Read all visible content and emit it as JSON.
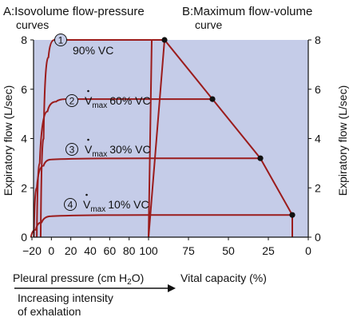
{
  "titles": {
    "a_title": "A:Isovolume flow-pressure",
    "a_title_line2": "curves",
    "b_title": "B:Maximum flow-volume",
    "b_title_line2": "curve"
  },
  "colors": {
    "plot_background": "#c5cce8",
    "curve": "#9b1c1c",
    "point": "#111111"
  },
  "y_axis": {
    "label_left": "Expiratory flow (L/sec)",
    "label_right": "Expiratory flow (L/sec)",
    "ticks": [
      "0",
      "2",
      "4",
      "6",
      "8"
    ],
    "range": [
      0,
      8
    ]
  },
  "x_axis_a": {
    "label_prefix": "Pleural pressure (cm H",
    "label_sub": "2",
    "label_suffix": "O)",
    "ticks": [
      "−20",
      "0",
      "20",
      "40",
      "60",
      "80",
      "100"
    ],
    "range": [
      -20,
      100
    ]
  },
  "x_axis_b": {
    "label": "Vital capacity (%)",
    "ticks": [
      "100",
      "75",
      "50",
      "25",
      "0"
    ],
    "range": [
      100,
      0
    ]
  },
  "annotation": {
    "line1": "Increasing intensity",
    "line2": "of exhalation"
  },
  "curve_labels": [
    {
      "num": "1",
      "vmax": "",
      "text": "90% VC"
    },
    {
      "num": "2",
      "vmax": "V",
      "sub": "max",
      "text": "60% VC"
    },
    {
      "num": "3",
      "vmax": "V",
      "sub": "max",
      "text": "30% VC"
    },
    {
      "num": "4",
      "vmax": "V",
      "sub": "max",
      "text": "10% VC"
    }
  ],
  "chart_data": [
    {
      "type": "line",
      "title": "Isovolume flow-pressure curves",
      "xlabel": "Pleural pressure (cm H2O)",
      "ylabel": "Expiratory flow (L/sec)",
      "xlim": [
        -20,
        100
      ],
      "ylim": [
        0,
        8
      ],
      "series": [
        {
          "name": "90% VC",
          "plateau_flow": 8.0,
          "points": [
            [
              -11,
              0
            ],
            [
              -8,
              4
            ],
            [
              -3,
              7.3
            ],
            [
              3,
              8
            ],
            [
              100,
              8
            ]
          ]
        },
        {
          "name": "60% VC",
          "plateau_flow": 5.6,
          "points": [
            [
              -15,
              0
            ],
            [
              -12,
              3
            ],
            [
              -4,
              5.1
            ],
            [
              5,
              5.5
            ],
            [
              15,
              5.6
            ],
            [
              100,
              5.6
            ]
          ]
        },
        {
          "name": "30% VC",
          "plateau_flow": 3.2,
          "points": [
            [
              -18,
              0
            ],
            [
              -15,
              2
            ],
            [
              -8,
              2.9
            ],
            [
              0,
              3.15
            ],
            [
              100,
              3.2
            ]
          ]
        },
        {
          "name": "10% VC",
          "plateau_flow": 0.9,
          "points": [
            [
              -21,
              0
            ],
            [
              -16,
              0.3
            ],
            [
              -10,
              0.6
            ],
            [
              0,
              0.85
            ],
            [
              100,
              0.9
            ]
          ]
        }
      ]
    },
    {
      "type": "line",
      "title": "Maximum flow-volume curve",
      "xlabel": "Vital capacity (%)",
      "ylabel": "Expiratory flow (L/sec)",
      "xlim": [
        100,
        0
      ],
      "ylim": [
        0,
        8
      ],
      "series": [
        {
          "name": "Maximum flow-volume curve",
          "x": [
            100,
            90,
            60,
            30,
            10,
            10
          ],
          "y": [
            0,
            8,
            5.6,
            3.2,
            0.9,
            0
          ]
        }
      ],
      "points": [
        {
          "vc": 90,
          "flow": 8.0
        },
        {
          "vc": 60,
          "flow": 5.6
        },
        {
          "vc": 30,
          "flow": 3.2
        },
        {
          "vc": 10,
          "flow": 0.9
        }
      ]
    }
  ]
}
